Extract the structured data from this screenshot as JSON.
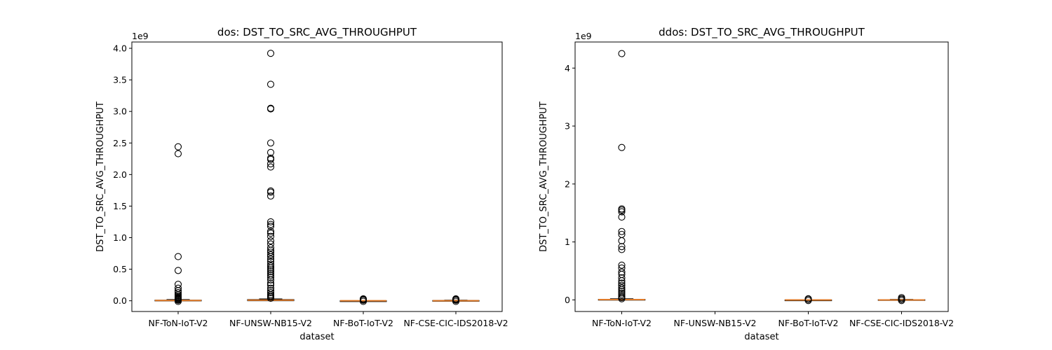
{
  "chart_data": [
    {
      "type": "boxplot",
      "title": "dos: DST_TO_SRC_AVG_THROUGHPUT",
      "xlabel": "dataset",
      "ylabel": "DST_TO_SRC_AVG_THROUGHPUT",
      "y_offset_label": "1e9",
      "ylim": [
        -0.17,
        4.1
      ],
      "yticks": [
        0.0,
        0.5,
        1.0,
        1.5,
        2.0,
        2.5,
        3.0,
        3.5,
        4.0
      ],
      "ytick_labels": [
        "0.0",
        "0.5",
        "1.0",
        "1.5",
        "2.0",
        "2.5",
        "3.0",
        "3.5",
        "4.0"
      ],
      "categories": [
        "NF-ToN-IoT-V2",
        "NF-UNSW-NB15-V2",
        "NF-BoT-IoT-V2",
        "NF-CSE-CIC-IDS2018-V2"
      ],
      "boxes": [
        {
          "q1": 0.0,
          "median": 0.005,
          "q3": 0.01,
          "whisker_low": 0.0,
          "whisker_high": 0.02
        },
        {
          "q1": 0.0,
          "median": 0.01,
          "q3": 0.02,
          "whisker_low": 0.0,
          "whisker_high": 0.03
        },
        {
          "q1": 0.0,
          "median": 0.0,
          "q3": 0.0,
          "whisker_low": 0.0,
          "whisker_high": 0.0
        },
        {
          "q1": 0.0,
          "median": 0.0,
          "q3": 0.005,
          "whisker_low": 0.0,
          "whisker_high": 0.01
        }
      ],
      "outliers": [
        [
          2.44,
          2.33,
          0.7,
          0.48,
          0.26,
          0.2,
          0.16,
          0.13,
          0.1,
          0.08,
          0.06,
          0.05,
          0.04,
          0.03,
          0.02,
          0.01,
          -0.01
        ],
        [
          3.92,
          3.43,
          3.05,
          3.04,
          2.5,
          2.35,
          2.26,
          2.24,
          2.17,
          2.12,
          1.74,
          1.72,
          1.66,
          1.25,
          1.21,
          1.18,
          1.1,
          1.07,
          1.02,
          0.95,
          0.9,
          0.84,
          0.8,
          0.77,
          0.73,
          0.7,
          0.66,
          0.62,
          0.58,
          0.55,
          0.52,
          0.49,
          0.46,
          0.43,
          0.4,
          0.37,
          0.33,
          0.28,
          0.25,
          0.2,
          0.16,
          0.13,
          0.1,
          0.08,
          0.06,
          0.04
        ],
        [
          0.03,
          0.02,
          0.01,
          -0.01
        ],
        [
          0.03,
          0.02,
          0.01,
          -0.01
        ]
      ]
    },
    {
      "type": "boxplot",
      "title": "ddos: DST_TO_SRC_AVG_THROUGHPUT",
      "xlabel": "dataset",
      "ylabel": "DST_TO_SRC_AVG_THROUGHPUT",
      "y_offset_label": "1e9",
      "ylim": [
        -0.2,
        4.45
      ],
      "yticks": [
        0,
        1,
        2,
        3,
        4
      ],
      "ytick_labels": [
        "0",
        "1",
        "2",
        "3",
        "4"
      ],
      "categories": [
        "NF-ToN-IoT-V2",
        "NF-UNSW-NB15-V2",
        "NF-BoT-IoT-V2",
        "NF-CSE-CIC-IDS2018-V2"
      ],
      "boxes": [
        {
          "q1": 0.0,
          "median": 0.005,
          "q3": 0.01,
          "whisker_low": 0.0,
          "whisker_high": 0.02
        },
        null,
        {
          "q1": 0.0,
          "median": 0.0,
          "q3": 0.0,
          "whisker_low": 0.0,
          "whisker_high": 0.0
        },
        {
          "q1": 0.0,
          "median": 0.0,
          "q3": 0.005,
          "whisker_low": 0.0,
          "whisker_high": 0.01
        }
      ],
      "outliers": [
        [
          4.25,
          2.63,
          1.57,
          1.55,
          1.52,
          1.43,
          1.18,
          1.13,
          1.02,
          0.92,
          0.87,
          0.6,
          0.55,
          0.48,
          0.44,
          0.38,
          0.33,
          0.29,
          0.25,
          0.21,
          0.18,
          0.15,
          0.12,
          0.09,
          0.06,
          0.04,
          0.02
        ],
        [],
        [
          0.02,
          0.01,
          -0.01
        ],
        [
          0.04,
          0.02,
          0.01,
          -0.01
        ]
      ]
    }
  ]
}
